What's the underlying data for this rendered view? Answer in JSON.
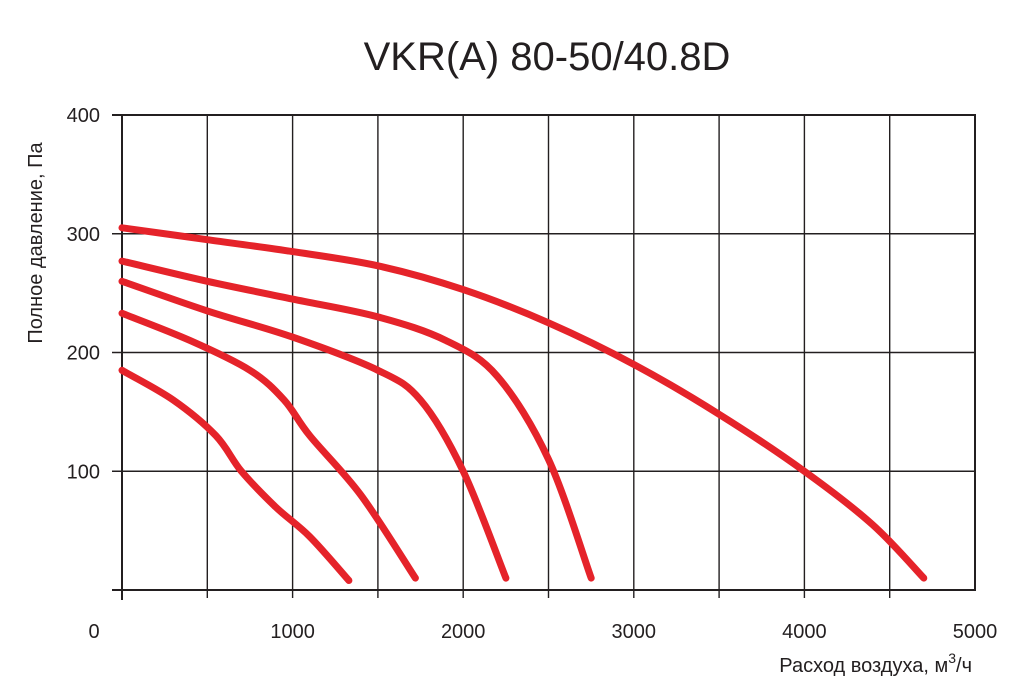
{
  "chart_data": {
    "type": "line",
    "title": "VKR(A) 80-50/40.8D",
    "xlabel": "Расход воздуха, м",
    "xlabel_sup": "3",
    "xlabel_suffix": "/ч",
    "ylabel": "Полное давление, Па",
    "xlim": [
      0,
      5000
    ],
    "ylim": [
      0,
      400
    ],
    "x_ticks": [
      "0",
      "1000",
      "2000",
      "3000",
      "4000",
      "5000"
    ],
    "y_ticks": [
      "100",
      "200",
      "300",
      "400"
    ],
    "grid": true,
    "line_color": "#e5232a",
    "series": [
      {
        "points": [
          [
            0,
            185
          ],
          [
            300,
            160
          ],
          [
            550,
            130
          ],
          [
            700,
            100
          ],
          [
            900,
            70
          ],
          [
            1100,
            45
          ],
          [
            1330,
            8
          ]
        ]
      },
      {
        "points": [
          [
            0,
            233
          ],
          [
            400,
            210
          ],
          [
            750,
            185
          ],
          [
            950,
            160
          ],
          [
            1100,
            130
          ],
          [
            1400,
            80
          ],
          [
            1720,
            10
          ]
        ]
      },
      {
        "points": [
          [
            0,
            260
          ],
          [
            500,
            235
          ],
          [
            1000,
            213
          ],
          [
            1500,
            185
          ],
          [
            1750,
            160
          ],
          [
            2000,
            100
          ],
          [
            2250,
            10
          ]
        ]
      },
      {
        "points": [
          [
            0,
            277
          ],
          [
            500,
            260
          ],
          [
            1000,
            245
          ],
          [
            1500,
            230
          ],
          [
            1900,
            210
          ],
          [
            2200,
            180
          ],
          [
            2500,
            110
          ],
          [
            2750,
            10
          ]
        ]
      },
      {
        "points": [
          [
            0,
            305
          ],
          [
            500,
            295
          ],
          [
            1000,
            285
          ],
          [
            1500,
            273
          ],
          [
            2000,
            253
          ],
          [
            2500,
            225
          ],
          [
            3000,
            190
          ],
          [
            3500,
            148
          ],
          [
            4000,
            100
          ],
          [
            4400,
            55
          ],
          [
            4700,
            10
          ]
        ]
      }
    ]
  }
}
